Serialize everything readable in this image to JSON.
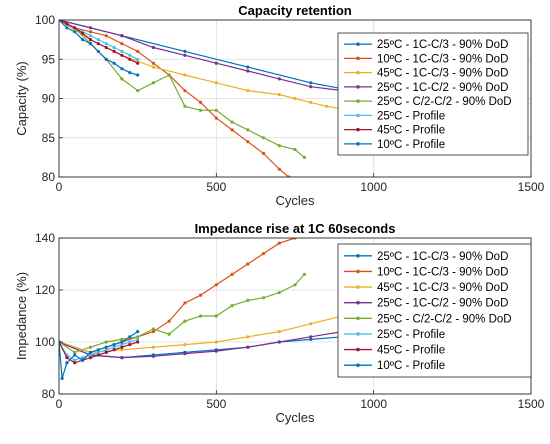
{
  "chart_data": [
    {
      "type": "line",
      "title": "Capacity retention",
      "xlabel": "Cycles",
      "ylabel": "Capacity (%)",
      "xlim": [
        0,
        1500
      ],
      "ylim": [
        80,
        100
      ],
      "xticks": [
        0,
        500,
        1000,
        1500
      ],
      "yticks": [
        80,
        85,
        90,
        95,
        100
      ],
      "grid": true,
      "legend_position": "top-right",
      "series": [
        {
          "name": "25ºC - 1C-C/3 - 90% DoD",
          "color": "#0072BD",
          "x": [
            0,
            200,
            400,
            600,
            800,
            1000
          ],
          "y": [
            100,
            98,
            96,
            94,
            92,
            90.5
          ]
        },
        {
          "name": "10ºC - 1C-C/3 - 90% DoD",
          "color": "#D95319",
          "x": [
            0,
            50,
            100,
            150,
            200,
            250,
            300,
            350,
            400,
            450,
            500,
            550,
            600,
            650,
            700,
            730
          ],
          "y": [
            100,
            99,
            98.5,
            98,
            97,
            96,
            94.5,
            93,
            91,
            89.5,
            87.5,
            86,
            84.5,
            83,
            81,
            80
          ]
        },
        {
          "name": "45ºC - 1C-C/3 - 90% DoD",
          "color": "#EDB120",
          "x": [
            0,
            100,
            200,
            300,
            400,
            500,
            600,
            700,
            750,
            800,
            850,
            900,
            950
          ],
          "y": [
            100,
            97.5,
            95.5,
            94,
            93,
            92,
            91,
            90.5,
            90,
            89.5,
            89,
            88.7,
            88.5
          ]
        },
        {
          "name": "25ºC - 1C-C/2 - 90% DoD",
          "color": "#7E2F8E",
          "x": [
            0,
            100,
            200,
            300,
            400,
            500,
            600,
            700,
            800,
            900,
            950
          ],
          "y": [
            100,
            99,
            98,
            96.5,
            95.5,
            94.5,
            93.5,
            92.5,
            91.5,
            91,
            90.8
          ]
        },
        {
          "name": "25ºC - C/2-C/2 - 90% DoD",
          "color": "#77AC30",
          "x": [
            0,
            50,
            100,
            150,
            200,
            250,
            300,
            350,
            400,
            450,
            500,
            550,
            600,
            650,
            700,
            750,
            780
          ],
          "y": [
            100,
            99,
            97,
            95,
            92.5,
            91,
            92,
            93,
            89,
            88.5,
            88.5,
            87,
            86,
            85,
            84,
            83.5,
            82.5
          ]
        },
        {
          "name": "25ºC - Profile",
          "color": "#4DBEEE",
          "x": [
            0,
            25,
            50,
            75,
            100,
            125,
            150,
            175,
            200,
            225,
            250
          ],
          "y": [
            100,
            99.5,
            99,
            98.5,
            98,
            97.5,
            97,
            96.5,
            96,
            95.5,
            95
          ]
        },
        {
          "name": "45ºC - Profile",
          "color": "#A2142F",
          "x": [
            0,
            25,
            50,
            75,
            100,
            125,
            150,
            175,
            200,
            225,
            250
          ],
          "y": [
            100,
            99.5,
            99,
            98.3,
            97.5,
            97,
            96.5,
            96,
            95.5,
            95,
            94.5
          ]
        },
        {
          "name": "10ºC - Profile",
          "color": "#0072BD",
          "x": [
            0,
            25,
            50,
            75,
            100,
            125,
            150,
            175,
            200,
            225,
            250
          ],
          "y": [
            100,
            99,
            98.5,
            97.5,
            97,
            96,
            95,
            94.5,
            93.8,
            93.3,
            93
          ]
        }
      ]
    },
    {
      "type": "line",
      "title": "Impedance rise at 1C 60seconds",
      "xlabel": "Cycles",
      "ylabel": "Impedance (%)",
      "xlim": [
        0,
        1500
      ],
      "ylim": [
        80,
        140
      ],
      "xticks": [
        0,
        500,
        1000,
        1500
      ],
      "yticks": [
        80,
        100,
        120,
        140
      ],
      "grid": true,
      "legend_position": "top-right",
      "series": [
        {
          "name": "25ºC - 1C-C/3 - 90% DoD",
          "color": "#0072BD",
          "x": [
            0,
            100,
            200,
            300,
            400,
            500,
            600,
            700,
            800,
            900,
            1000
          ],
          "y": [
            100,
            95,
            94,
            95,
            96,
            97,
            98,
            100,
            101,
            102,
            103
          ]
        },
        {
          "name": "10ºC - 1C-C/3 - 90% DoD",
          "color": "#D95319",
          "x": [
            0,
            100,
            200,
            300,
            350,
            400,
            450,
            500,
            550,
            600,
            650,
            700,
            750
          ],
          "y": [
            100,
            96,
            100,
            104,
            108,
            115,
            118,
            122,
            126,
            130,
            134,
            138,
            140
          ]
        },
        {
          "name": "45ºC - 1C-C/3 - 90% DoD",
          "color": "#EDB120",
          "x": [
            0,
            100,
            200,
            300,
            400,
            500,
            600,
            700,
            800,
            900,
            950
          ],
          "y": [
            100,
            96,
            97,
            98,
            99,
            100,
            102,
            104,
            107,
            110,
            110
          ]
        },
        {
          "name": "25ºC - 1C-C/2 - 90% DoD",
          "color": "#7E2F8E",
          "x": [
            0,
            100,
            200,
            300,
            400,
            500,
            600,
            700,
            800,
            900,
            950
          ],
          "y": [
            100,
            95,
            94,
            94.5,
            95.5,
            96.5,
            98,
            100,
            102,
            104,
            105
          ]
        },
        {
          "name": "25ºC - C/2-C/2 - 90% DoD",
          "color": "#77AC30",
          "x": [
            0,
            50,
            100,
            150,
            200,
            250,
            300,
            350,
            400,
            450,
            500,
            550,
            600,
            650,
            700,
            750,
            780
          ],
          "y": [
            100,
            96,
            98,
            100,
            101,
            102,
            105,
            103,
            108,
            110,
            110,
            114,
            116,
            117,
            119,
            122,
            126
          ]
        },
        {
          "name": "25ºC - Profile",
          "color": "#4DBEEE",
          "x": [
            0,
            25,
            50,
            75,
            100,
            125,
            150,
            175,
            200,
            225,
            250
          ],
          "y": [
            100,
            95,
            93,
            94,
            95,
            96,
            97,
            98,
            99,
            100,
            101
          ]
        },
        {
          "name": "45ºC - Profile",
          "color": "#A2142F",
          "x": [
            0,
            25,
            50,
            75,
            100,
            125,
            150,
            175,
            200,
            225,
            250
          ],
          "y": [
            100,
            94,
            92,
            93,
            94,
            95,
            96,
            97,
            98,
            99,
            100
          ]
        },
        {
          "name": "10ºC - Profile",
          "color": "#0072BD",
          "x": [
            0,
            10,
            25,
            50,
            75,
            100,
            125,
            150,
            175,
            200,
            225,
            250
          ],
          "y": [
            100,
            86,
            92,
            95,
            93,
            96,
            97,
            98,
            99,
            100,
            102,
            104
          ]
        }
      ]
    }
  ]
}
